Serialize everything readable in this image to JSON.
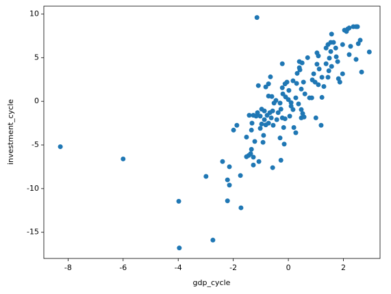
{
  "chart_data": {
    "type": "scatter",
    "x_label": "gdp_cycle",
    "y_label": "investment_cycle",
    "color": "#1f77b4",
    "xlim": [
      -8.88,
      3.33
    ],
    "ylim": [
      -18.0,
      10.9
    ],
    "xticks": [
      -8,
      -6,
      -4,
      -2,
      0,
      2
    ],
    "yticks": [
      -15,
      -10,
      -5,
      0,
      5,
      10
    ],
    "x": [
      -8.28,
      -6.0,
      -3.98,
      -3.96,
      -2.74,
      -2.99,
      -2.39,
      -2.14,
      -2.21,
      -2.14,
      -2.21,
      -1.72,
      -1.74,
      -1.99,
      -1.87,
      -1.14,
      -1.27,
      -1.52,
      -1.44,
      -1.37,
      -1.34,
      -1.27,
      -1.22,
      -1.07,
      -0.92,
      -0.9,
      -0.57,
      -0.27,
      -0.15,
      -0.3,
      -1.52,
      -1.34,
      -1.32,
      -1.12,
      -1.02,
      -1.17,
      -0.97,
      -0.87,
      -0.77,
      -0.67,
      -0.57,
      -0.87,
      -0.97,
      -1.02,
      -0.82,
      -0.72,
      -0.62,
      -1.27,
      -1.42,
      -1.09,
      -0.82,
      -0.72,
      -0.65,
      -0.72,
      -0.6,
      -0.45,
      -0.52,
      -0.37,
      -0.27,
      -0.22,
      -0.12,
      -0.3,
      -0.2,
      -0.22,
      -0.12,
      -0.22,
      -0.05,
      0.02,
      -0.1,
      0.0,
      0.1,
      0.17,
      0.05,
      -0.17,
      0.2,
      0.27,
      0.1,
      0.27,
      0.37,
      0.47,
      0.52,
      0.47,
      0.57,
      0.3,
      0.17,
      0.32,
      0.4,
      0.42,
      0.4,
      0.5,
      0.55,
      0.47,
      0.6,
      0.7,
      0.77,
      0.85,
      0.87,
      0.92,
      0.97,
      1.0,
      1.04,
      1.04,
      1.09,
      1.12,
      1.19,
      1.09,
      1.22,
      1.22,
      1.29,
      1.37,
      1.37,
      1.44,
      1.44,
      1.47,
      1.54,
      1.54,
      1.57,
      1.49,
      1.57,
      1.64,
      1.72,
      1.74,
      1.79,
      1.82,
      1.87,
      1.97,
      1.97,
      2.04,
      2.11,
      2.16,
      2.21,
      2.21,
      2.26,
      2.36,
      2.46,
      2.51,
      2.46,
      2.54,
      2.61,
      2.94,
      2.66,
      -0.55,
      -0.42
    ],
    "values": [
      -5.2,
      -6.6,
      -11.45,
      -16.8,
      -15.9,
      -8.6,
      -6.9,
      -7.5,
      -9.0,
      -9.6,
      -11.4,
      -12.2,
      -8.5,
      -3.3,
      -2.75,
      9.6,
      -7.3,
      -6.35,
      -6.2,
      -6.0,
      -5.5,
      -6.4,
      -4.6,
      -6.9,
      -4.7,
      -3.9,
      -7.6,
      -6.75,
      -4.9,
      -4.2,
      -4.1,
      -3.3,
      -2.5,
      -1.3,
      -1.7,
      -1.7,
      -0.9,
      -1.1,
      -1.6,
      -1.3,
      -1.1,
      -2.1,
      -2.6,
      -3.1,
      -2.7,
      -2.5,
      -1.9,
      -1.6,
      -1.6,
      1.8,
      1.65,
      2.0,
      2.8,
      0.6,
      0.55,
      0.1,
      -0.2,
      -1.3,
      -0.9,
      -1.9,
      -2.0,
      -0.2,
      0.85,
      1.55,
      2.0,
      4.3,
      2.2,
      1.25,
      0.5,
      0.2,
      -0.15,
      -0.95,
      -1.7,
      -3.0,
      -3.0,
      -3.6,
      -0.55,
      0.4,
      -0.3,
      -0.95,
      -1.4,
      -1.9,
      -1.8,
      2.05,
      2.35,
      3.2,
      3.85,
      3.6,
      4.55,
      4.4,
      2.2,
      1.4,
      0.85,
      5.0,
      0.4,
      0.4,
      2.45,
      3.15,
      2.2,
      -1.9,
      4.25,
      5.55,
      5.2,
      3.7,
      -2.75,
      1.9,
      2.75,
      0.45,
      1.7,
      6.1,
      4.3,
      6.5,
      2.75,
      3.5,
      6.75,
      5.7,
      7.7,
      4.95,
      4.0,
      6.75,
      6.1,
      5.1,
      4.55,
      2.6,
      2.2,
      6.5,
      3.15,
      8.15,
      8.0,
      8.3,
      8.4,
      5.35,
      6.3,
      8.55,
      8.55,
      8.55,
      4.8,
      6.6,
      7.0,
      5.65,
      3.35,
      -2.75,
      -2.1
    ]
  }
}
